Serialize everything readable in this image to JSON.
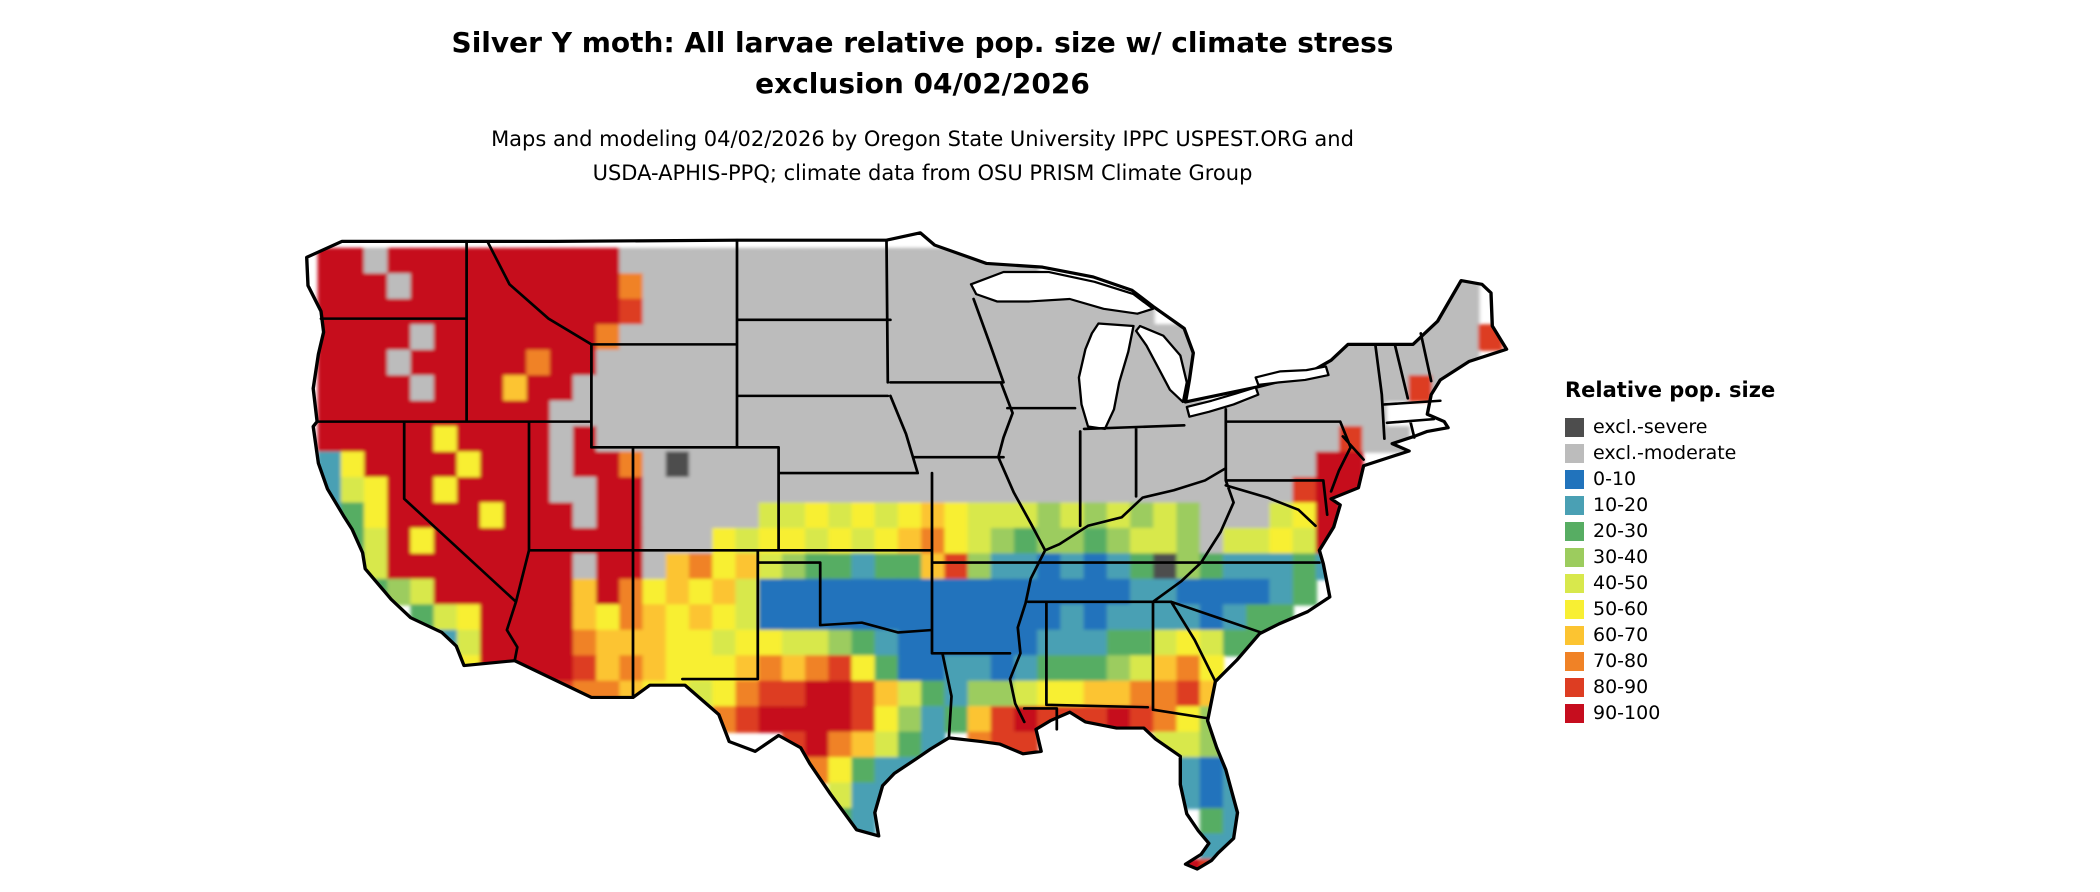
{
  "title": {
    "line1": "Silver Y moth: All larvae relative pop. size w/ climate stress",
    "line2": "exclusion 04/02/2026"
  },
  "subtitle": {
    "line1": "Maps and modeling 04/02/2026 by Oregon State University IPPC USPEST.ORG and",
    "line2": "USDA-APHIS-PPQ; climate data from OSU PRISM Climate Group"
  },
  "legend": {
    "title": "Relative pop. size",
    "items": [
      {
        "label": "excl.-severe",
        "color": "#4d4d4d"
      },
      {
        "label": "excl.-moderate",
        "color": "#bcbcbc"
      },
      {
        "label": "0-10",
        "color": "#2173bc"
      },
      {
        "label": "10-20",
        "color": "#4aa0b4"
      },
      {
        "label": "20-30",
        "color": "#57ad63"
      },
      {
        "label": "30-40",
        "color": "#9ccc5e"
      },
      {
        "label": "40-50",
        "color": "#d8e84c"
      },
      {
        "label": "50-60",
        "color": "#f8ef33"
      },
      {
        "label": "60-70",
        "color": "#fcc431"
      },
      {
        "label": "70-80",
        "color": "#f08226"
      },
      {
        "label": "80-90",
        "color": "#dd3d22"
      },
      {
        "label": "90-100",
        "color": "#c60d1e"
      }
    ]
  },
  "map": {
    "background": "#ffffff",
    "border_color": "#000000",
    "grid": {
      "cols": 56,
      "rows": 26,
      "codes": {
        "G": "#bcbcbc",
        "D": "#4d4d4d",
        "a": "#2173bc",
        "b": "#4aa0b4",
        "c": "#57ad63",
        "d": "#9ccc5e",
        "e": "#d8e84c",
        "f": "#f8ef33",
        "g": "#fcc431",
        "h": "#f08226",
        "i": "#dd3d22",
        "j": "#c60d1e"
      },
      "rows_data": [
        "........................................................",
        ".jjGjjjjjjjjjjGGGGGGGGGGGGGGGGGG........................",
        ".jjjGjjjjjjjjjhGGGGGGGGGGGGGGGGG................GGG.....",
        ".jjjjjjjjjjjjjiGGGGGGGGGGGGGGGGGGGGGG..........GGGG.....",
        ".jjjjGjjjjjjjhGGGGGGGGGGGGGGGGGGGGGGGGG..GGGGGGGGGGi....",
        ".jjjGjjjjjhjjGGGGGGGGGGGGGGGGGGGGGGGGGG..GGGGGGGGGG.....",
        ".jjjjGjjjgjjGGGGGGGGGGGGGGGGGGGGGGGGGGG..GGGGGGGiG......",
        ".jjjjjjjjjjGGGGGGGGGGGGGGGGGGGGGGGGGGGGGGGGGGGG.........",
        ".jjjjjfjjjjGjGGGGGGGGGGGGGGGGGGGGGGGGGGGGGGGGiGG........",
        ".bfjjjjfjjjGjjhGDGGGGGGGGGGGGGGGGGGGGGGGGGGGjj..........",
        ".befjjfjjjjGGjjGGGGGGGGGGGGGGGGGGGGGGGGGGGGijj..........",
        ".bcfjjjjfjjjGjjGGGGGeefefefgfeeededededGGGefj...........",
        ".bcejfjjjjjjjjjGGGfeffefefghfedcddcdeedGeefej...........",
        ".bcejjjjjjjjGjjGghfgedccbccgidbbababcDdcbbbcb...........",
        "...cdejjjjjjgjhfgfgeaaaaaaaaaaaaaaaabbaaaabc............",
        ".....cefjjjjgfhgfgfeaaaaaaaaaaaaababbbbabcc.............",
        "......bejjjjhgggffeffeedcbaaaaaabbbccefecc..............",
        ".......fjjjjighgfffghghifcaabbabcccdeghf................",
        "..........jihhgffefhiijjigecbddeffgghhige...............",
        "..................hijjjjifdbcgijiiijihfd................",
        ".....................ijhgecb.hii.....eedc...............",
        "......................hfcbb...........bab...............",
        ".......................ebb............bab...............",
        ".......................cb..............cb...............",
        ".......................................bb...............",
        "......................................jij..............."
      ]
    }
  }
}
